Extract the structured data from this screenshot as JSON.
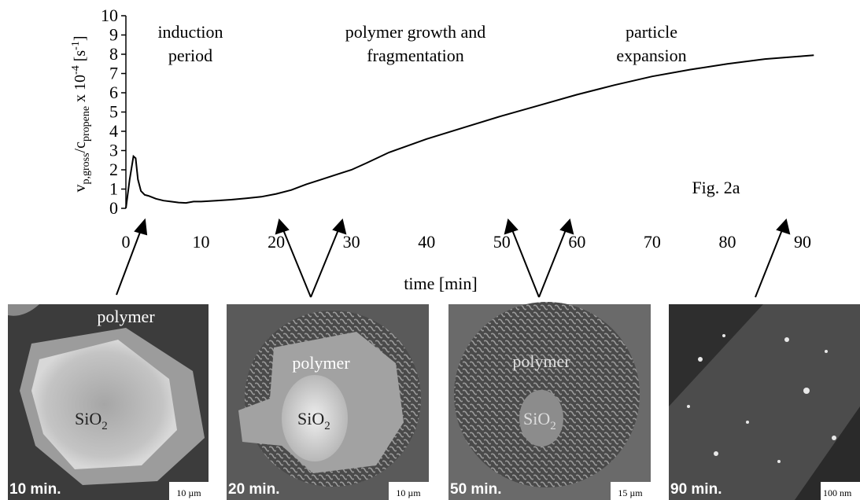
{
  "chart_data": {
    "type": "line",
    "y_label": {
      "v": "v",
      "v_sub": "p,gross",
      "slash": "/c",
      "c_sub": "propene",
      "times": " x 10",
      "exp": "-4",
      "unit_open": " [s",
      "unit_exp": "-1",
      "unit_close": "]"
    },
    "x_label": "time [min]",
    "annotations": [
      {
        "lines": [
          "induction",
          "period"
        ]
      },
      {
        "lines": [
          "polymer growth and",
          "fragmentation"
        ]
      },
      {
        "lines": [
          "particle",
          "expansion"
        ]
      },
      {
        "lines": [
          "Fig. 2a"
        ]
      }
    ],
    "x": [
      0,
      0.5,
      1,
      1.3,
      1.6,
      2,
      2.5,
      3,
      4,
      5,
      6,
      7,
      8,
      9,
      10,
      12,
      14,
      16,
      18,
      20,
      22,
      24,
      26,
      28,
      30,
      32,
      35,
      40,
      45,
      50,
      55,
      60,
      65,
      70,
      75,
      80,
      85,
      90,
      91.5
    ],
    "values": [
      0,
      1.5,
      2.7,
      2.6,
      1.5,
      0.9,
      0.7,
      0.65,
      0.5,
      0.4,
      0.35,
      0.3,
      0.28,
      0.35,
      0.35,
      0.4,
      0.45,
      0.52,
      0.6,
      0.75,
      0.95,
      1.25,
      1.5,
      1.75,
      2.0,
      2.35,
      2.9,
      3.6,
      4.2,
      4.8,
      5.35,
      5.9,
      6.4,
      6.85,
      7.2,
      7.5,
      7.75,
      7.9,
      7.95
    ],
    "color": "#000000",
    "xlim": [
      0,
      92
    ],
    "xticks": [
      0,
      10,
      20,
      30,
      40,
      50,
      60,
      70,
      80,
      90
    ],
    "ylim": [
      0,
      10
    ],
    "yticks": [
      0,
      1,
      2,
      3,
      4,
      5,
      6,
      7,
      8,
      9,
      10
    ]
  },
  "panels": [
    {
      "time": "10 min.",
      "label": "polymer",
      "material": "SiO",
      "material_sub": "2",
      "scale": "10 µm"
    },
    {
      "time": "20 min.",
      "label": "polymer",
      "material": "SiO",
      "material_sub": "2",
      "scale": "10 µm"
    },
    {
      "time": "50 min.",
      "label": "polymer",
      "material": "SiO",
      "material_sub": "2",
      "scale": "15 µm"
    },
    {
      "time": "90 min.",
      "scale": "100 nm"
    }
  ]
}
